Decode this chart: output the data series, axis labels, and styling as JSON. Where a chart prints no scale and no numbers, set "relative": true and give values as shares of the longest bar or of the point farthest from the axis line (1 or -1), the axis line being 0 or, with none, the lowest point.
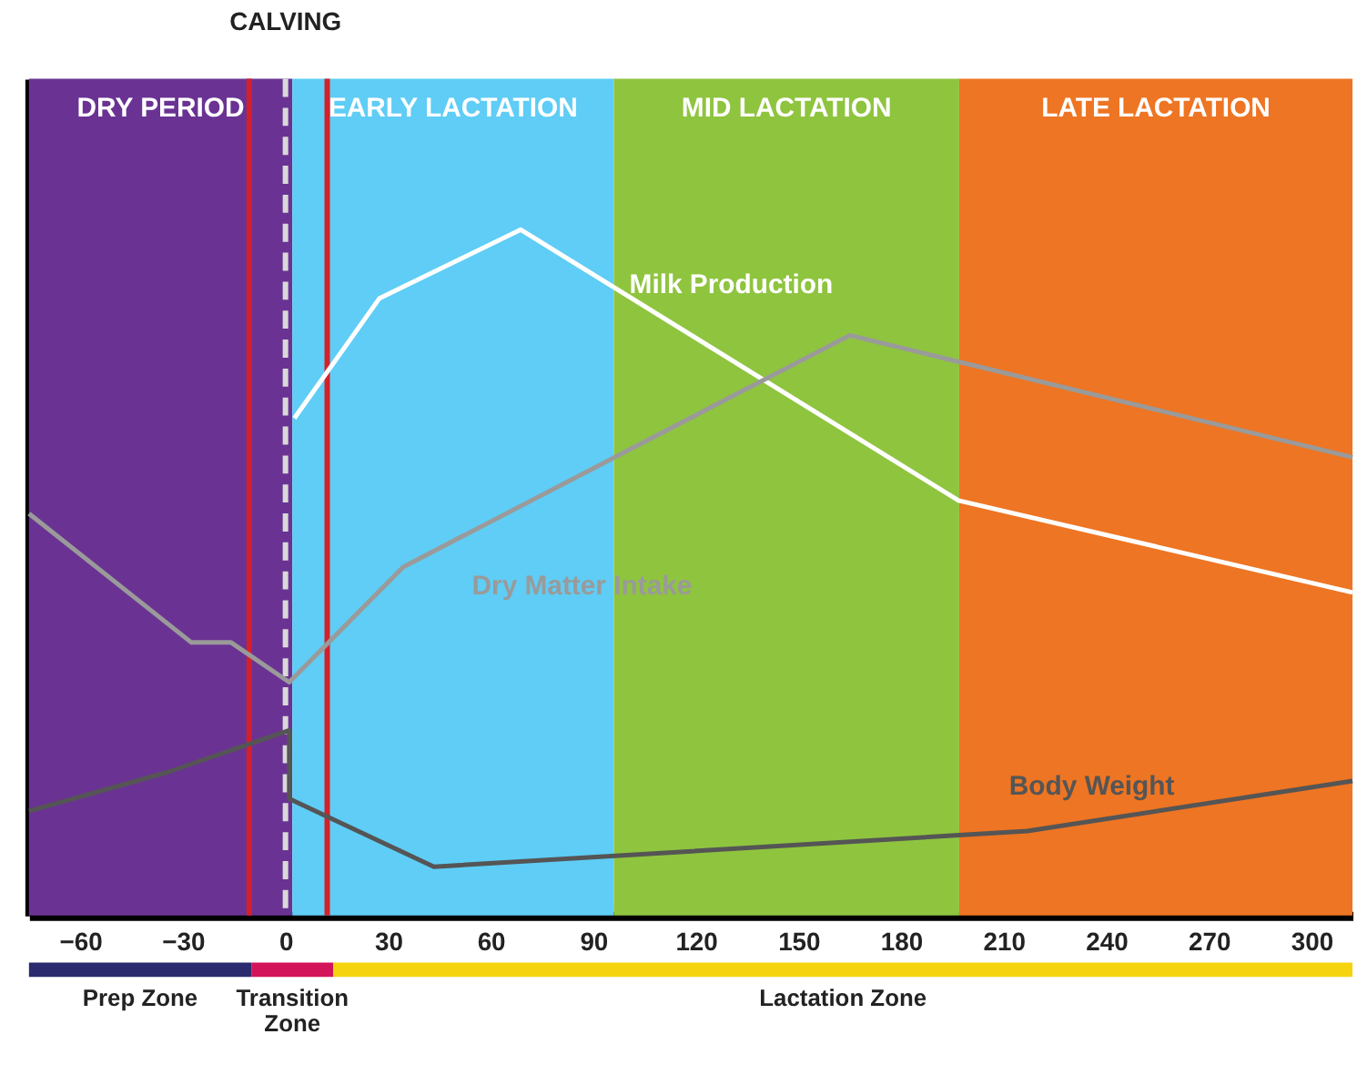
{
  "chart_data": [
    {
      "type": "line",
      "relative": true,
      "xlim": [
        -75,
        312
      ],
      "xticks": [
        -60,
        -30,
        0,
        30,
        60,
        90,
        120,
        150,
        180,
        210,
        240,
        270,
        300
      ],
      "grid": false,
      "marker": "none",
      "line_style": "solid",
      "series": [
        {
          "name": "Milk Production",
          "color": "#ffffff",
          "x": [
            2.6,
            27.5,
            68.8,
            196.8,
            312
          ],
          "values": [
            0.725,
            0.9,
            1.0,
            0.605,
            0.471
          ]
        },
        {
          "name": "Dry Matter Intake",
          "color": "#9a9a9a",
          "x": [
            -75,
            -27.5,
            -15.9,
            1.1,
            34.4,
            165,
            312
          ],
          "values": [
            0.586,
            0.398,
            0.398,
            0.34,
            0.508,
            0.846,
            0.668
          ]
        },
        {
          "name": "Body Weight",
          "color": "#555555",
          "x": [
            -75,
            -34.4,
            1.1,
            1.1,
            43.4,
            216.9,
            312
          ],
          "values": [
            0.152,
            0.209,
            0.27,
            0.17,
            0.071,
            0.123,
            0.196
          ]
        }
      ],
      "bands": [
        {
          "axis": "x",
          "from": -75,
          "to": 2,
          "label": "DRY PERIOD",
          "color": "#6a3393"
        },
        {
          "axis": "x",
          "from": 2,
          "to": 96,
          "label": "EARLY LACTATION",
          "color": "#5fcdf5"
        },
        {
          "axis": "x",
          "from": 96,
          "to": 197,
          "label": "MID LACTATION",
          "color": "#8fc43f"
        },
        {
          "axis": "x",
          "from": 197,
          "to": 312,
          "label": "LATE LACTATION",
          "color": "#ee7523"
        }
      ],
      "ref_lines": [
        {
          "axis": "x",
          "value": -10.6,
          "color": "#d4202a",
          "line_style": "solid"
        },
        {
          "axis": "x",
          "value": 12.2,
          "color": "#d4202a",
          "line_style": "solid"
        },
        {
          "axis": "x",
          "value": 0,
          "label": "CALVING",
          "color": "#d9d9d9",
          "line_style": "dashed"
        }
      ]
    },
    {
      "type": "bar",
      "orientation": "horizontal",
      "stacked": true,
      "relative": true,
      "tick_labels": false,
      "categories": [
        null
      ],
      "series": [
        {
          "name": "Prep Zone",
          "color": "#2b2a6e",
          "values": [
            0.168
          ]
        },
        {
          "name": "Transition\nZone",
          "color": "#d4145a",
          "values": [
            0.062
          ]
        },
        {
          "name": "Lactation Zone",
          "color": "#f5d40f",
          "values": [
            0.77
          ]
        }
      ]
    }
  ]
}
